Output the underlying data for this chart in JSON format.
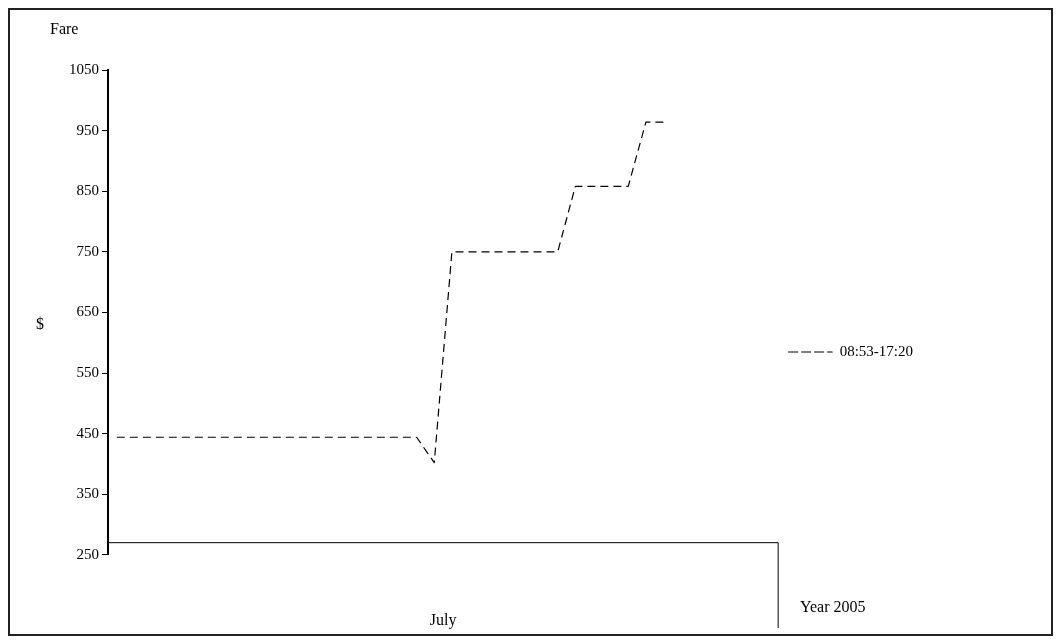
{
  "chart_data": {
    "type": "line",
    "title": "Fare",
    "ylabel": "$",
    "xlabel": "July",
    "annotations": [
      "Year 2005"
    ],
    "categories": [
      null,
      null,
      null,
      null,
      null,
      null,
      null,
      null,
      null,
      null,
      null,
      null,
      null,
      null,
      null,
      null,
      null,
      null,
      null,
      null,
      null,
      null,
      null,
      null,
      null,
      null,
      null,
      null,
      null,
      null,
      null,
      null,
      null,
      null,
      null,
      null,
      null,
      null
    ],
    "series": [
      {
        "name": "08:53-17:20",
        "color": "#000000",
        "values": [
          444,
          444,
          444,
          444,
          444,
          444,
          444,
          444,
          444,
          444,
          444,
          444,
          444,
          444,
          444,
          444,
          444,
          444,
          402,
          750,
          750,
          750,
          750,
          750,
          750,
          750,
          858,
          858,
          858,
          858,
          964,
          964,
          null,
          null,
          null,
          null,
          null,
          null
        ]
      }
    ],
    "ylim": [
      250,
      1050
    ],
    "yticks": [
      250,
      350,
      450,
      550,
      650,
      750,
      850,
      950,
      1050
    ],
    "ref_lines": [
      {
        "axis": "y",
        "value": 270,
        "color": "#000000",
        "line_style": "solid"
      }
    ],
    "grid": false,
    "legend": "right",
    "marker": "none",
    "line_style": "dashed"
  }
}
